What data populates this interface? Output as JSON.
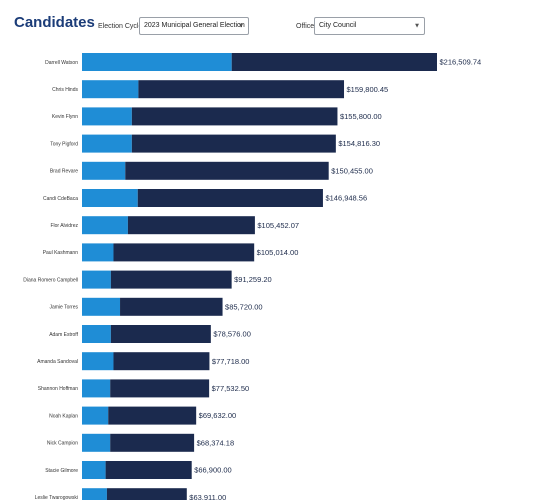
{
  "header": {
    "title": "Candidates",
    "election_cycle_label": "Election Cycle",
    "election_cycle_value": "2023 Municipal General Election",
    "office_label": "Office",
    "office_value": "City Council"
  },
  "colors": {
    "segment_light": "#1f8dd6",
    "segment_dark": "#1b2a4e",
    "title": "#1b3c78"
  },
  "chart_data": {
    "type": "bar",
    "orientation": "horizontal",
    "stacked": true,
    "title": "",
    "xlabel": "",
    "ylabel": "",
    "xlim": [
      0,
      216509.74
    ],
    "grid": false,
    "legend": "none",
    "categories": [
      "Darrell Watson",
      "Chris Hinds",
      "Kevin Flynn",
      "Tony Pigford",
      "Brad Revare",
      "Candi CdeBaca",
      "Flor Alvidrez",
      "Paul Kashmann",
      "Diana Romero Campbell",
      "Jamie Torres",
      "Adam Estroff",
      "Amanda Sandoval",
      "Shannon Hoffman",
      "Noah Kaplan",
      "Nick Campion",
      "Stacie Gilmore",
      "Leslie Twarogowski"
    ],
    "totals": [
      216509.74,
      159800.45,
      155800.0,
      154816.3,
      150455.0,
      146948.56,
      105452.07,
      105014.0,
      91259.2,
      85720.0,
      78576.0,
      77718.0,
      77532.5,
      69632.0,
      68374.18,
      66900.0,
      63911.0
    ],
    "total_labels": [
      "$216,509.74",
      "$159,800.45",
      "$155,800.00",
      "$154,816.30",
      "$150,455.00",
      "$146,948.56",
      "$105,452.07",
      "$105,014.00",
      "$91,259.20",
      "$85,720.00",
      "$78,576.00",
      "$77,718.00",
      "$77,532.50",
      "$69,632.00",
      "$68,374.18",
      "$66,900.00",
      "$63,911.00"
    ],
    "series": [
      {
        "values": [
          91300,
          34400,
          30400,
          30400,
          26400,
          34000,
          28000,
          19200,
          17600,
          23200,
          17600,
          19200,
          17200,
          16000,
          17200,
          14400,
          15200
        ]
      },
      {
        "values": [
          125209.74,
          125400.45,
          125400.0,
          124416.3,
          124055.0,
          112948.56,
          77452.07,
          85814.0,
          73659.2,
          62520.0,
          60976.0,
          58518.0,
          60332.5,
          53632.0,
          51174.18,
          52500.0,
          48711.0
        ]
      }
    ]
  }
}
